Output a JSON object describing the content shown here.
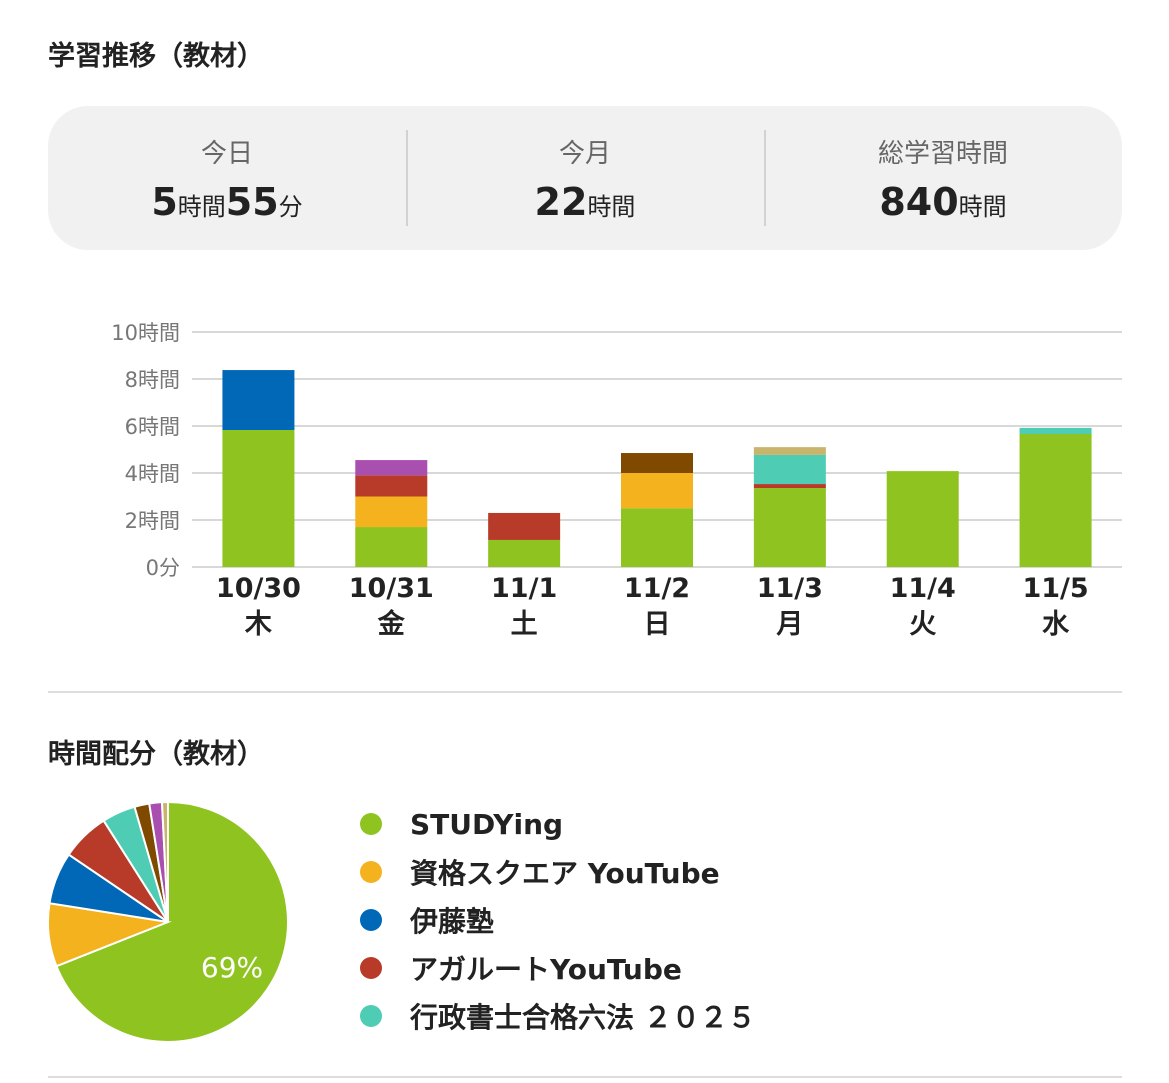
{
  "trend_title": "学習推移（教材）",
  "summary": [
    {
      "label": "今日",
      "parts": [
        {
          "n": "5",
          "u": "時間"
        },
        {
          "n": "55",
          "u": "分"
        }
      ]
    },
    {
      "label": "今月",
      "parts": [
        {
          "n": "22",
          "u": "時間"
        }
      ]
    },
    {
      "label": "総学習時間",
      "parts": [
        {
          "n": "840",
          "u": "時間"
        }
      ]
    }
  ],
  "distribution_title": "時間配分（教材）",
  "colors": {
    "STUDYing": "#8fc31f",
    "資格スクエア YouTube": "#f4b21f",
    "伊藤塾": "#0068b7",
    "アガルートYouTube": "#b83b2a",
    "行政書士合格六法 ２０２５": "#4ecdb4",
    "other1": "#7f4a00",
    "other2": "#a94fb0",
    "other3": "#c8b46a"
  },
  "chart_data": [
    {
      "type": "bar",
      "stacked": true,
      "categories": [
        "10/30",
        "10/31",
        "11/1",
        "11/2",
        "11/3",
        "11/4",
        "11/5"
      ],
      "weekdays": [
        "木",
        "金",
        "土",
        "日",
        "月",
        "火",
        "水"
      ],
      "yticks": [
        "0分",
        "2時間",
        "4時間",
        "6時間",
        "8時間",
        "10時間"
      ],
      "ylim": [
        0,
        10
      ],
      "grid": true,
      "series": [
        {
          "color": "#8fc31f",
          "values": [
            5.83,
            1.7,
            1.15,
            2.5,
            3.36,
            4.08,
            5.66
          ]
        },
        {
          "color": "#f4b21f",
          "values": [
            0,
            1.3,
            0,
            1.5,
            0,
            0,
            0
          ]
        },
        {
          "color": "#0068b7",
          "values": [
            2.55,
            0,
            0,
            0,
            0,
            0,
            0
          ]
        },
        {
          "color": "#b83b2a",
          "values": [
            0,
            0.9,
            1.15,
            0,
            0.17,
            0,
            0
          ]
        },
        {
          "color": "#4ecdb4",
          "values": [
            0,
            0,
            0,
            0,
            1.24,
            0,
            0.26
          ]
        },
        {
          "color": "#7f4a00",
          "values": [
            0,
            0,
            0,
            0.85,
            0,
            0,
            0
          ]
        },
        {
          "color": "#a94fb0",
          "values": [
            0,
            0.65,
            0,
            0,
            0,
            0,
            0
          ]
        },
        {
          "color": "#c8b46a",
          "values": [
            0,
            0,
            0,
            0,
            0.33,
            0,
            0
          ]
        }
      ]
    },
    {
      "type": "pie",
      "slices": [
        {
          "label": "STUDYing",
          "value": 69,
          "color": "#8fc31f"
        },
        {
          "label": "資格スクエア YouTube",
          "value": 8.5,
          "color": "#f4b21f"
        },
        {
          "label": "伊藤塾",
          "value": 7,
          "color": "#0068b7"
        },
        {
          "label": "アガルートYouTube",
          "value": 6.5,
          "color": "#b83b2a"
        },
        {
          "label": "行政書士合格六法 ２０２５",
          "value": 4.5,
          "color": "#4ecdb4"
        },
        {
          "value": 2,
          "color": "#7f4a00"
        },
        {
          "value": 1.7,
          "color": "#a94fb0"
        },
        {
          "value": 0.8,
          "color": "#c8b46a"
        }
      ],
      "data_label": "69%",
      "legend": [
        "STUDYing",
        "資格スクエア YouTube",
        "伊藤塾",
        "アガルートYouTube",
        "行政書士合格六法 ２０２５"
      ],
      "legend_position": "right"
    }
  ]
}
